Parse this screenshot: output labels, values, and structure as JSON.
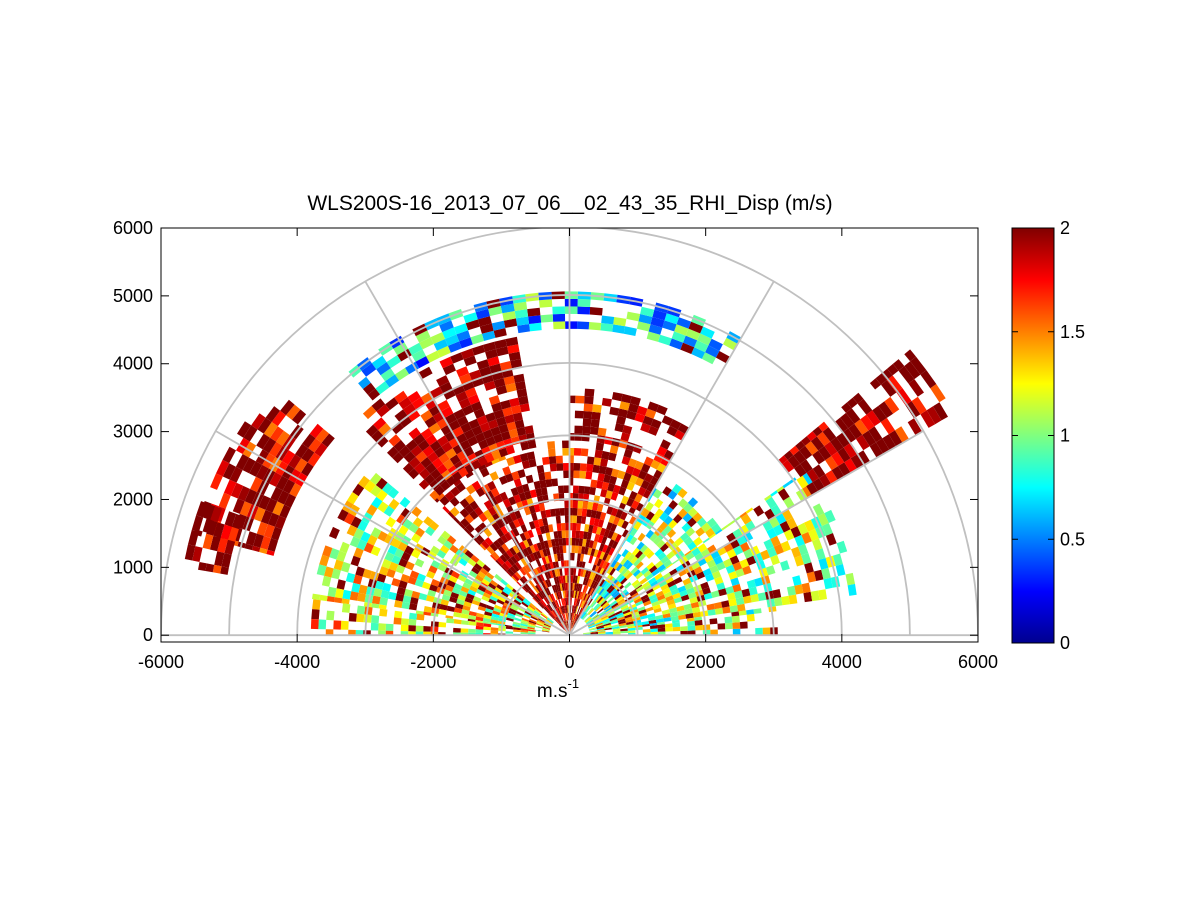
{
  "chart_data": {
    "type": "heatmap",
    "subtype": "polar RHI scan (range-height indicator)",
    "title": "WLS200S-16_2013_07_06__02_43_35_RHI_Disp (m/s)",
    "xlabel": "m.s",
    "xlabel_superscript": "-1",
    "ylabel": "",
    "xlim": [
      -6000,
      6000
    ],
    "ylim": [
      -100,
      6000
    ],
    "xticks": [
      -6000,
      -4000,
      -2000,
      0,
      2000,
      4000,
      6000
    ],
    "xtick_labels": [
      "-6000",
      "-4000",
      "-2000",
      "0",
      "2000",
      "4000",
      "6000"
    ],
    "yticks": [
      0,
      1000,
      2000,
      3000,
      4000,
      5000,
      6000
    ],
    "ytick_labels": [
      "0",
      "1000",
      "2000",
      "3000",
      "4000",
      "5000",
      "6000"
    ],
    "polar_grid": {
      "ring_ranges": [
        1000,
        2000,
        3000,
        4000,
        5000,
        6000
      ],
      "spoke_angles_deg": [
        0,
        30,
        60,
        90,
        120,
        150,
        180
      ]
    },
    "colorbar": {
      "colormap": "jet",
      "clim": [
        0,
        2
      ],
      "ticks": [
        0,
        0.5,
        1,
        1.5,
        2
      ],
      "tick_labels": [
        "0",
        "0.5",
        "1",
        "1.5",
        "2"
      ]
    },
    "value_range_m": [
      0,
      6000
    ],
    "note": "Per-gate values estimated from colour; high values (~2) dominate upper sectors, mid values (~0.5-1.2) in low-elevation sectors and the ~4700 m band near vertical.",
    "sectors": [
      {
        "az_from": 90,
        "az_to": 135,
        "r_from": 0,
        "r_to": 2800,
        "level": 1.85,
        "note": "dense red/orange core near origin"
      },
      {
        "az_from": 60,
        "az_to": 90,
        "r_from": 0,
        "r_to": 3600,
        "level": 1.8
      },
      {
        "az_from": 35,
        "az_to": 60,
        "r_from": 300,
        "r_to": 2700,
        "level": 1.0,
        "note": "green/cyan streaks"
      },
      {
        "az_from": 8,
        "az_to": 35,
        "r_from": 300,
        "r_to": 4200,
        "level": 1.1
      },
      {
        "az_from": 0,
        "az_to": 8,
        "r_from": 200,
        "r_to": 3000,
        "level": 1.05
      },
      {
        "az_from": 140,
        "az_to": 172,
        "r_from": 300,
        "r_to": 3800,
        "level": 1.2
      },
      {
        "az_from": 172,
        "az_to": 180,
        "r_from": 500,
        "r_to": 3700,
        "level": 1.3
      },
      {
        "az_from": 60,
        "az_to": 130,
        "r_from": 4500,
        "r_to": 5000,
        "level": 0.7,
        "note": "cyan/blue band"
      },
      {
        "az_from": 100,
        "az_to": 135,
        "r_from": 2800,
        "r_to": 4400,
        "level": 1.95
      },
      {
        "az_from": 140,
        "az_to": 165,
        "r_from": 4500,
        "r_to": 5700,
        "level": 1.9
      },
      {
        "az_from": 30,
        "az_to": 40,
        "r_from": 4000,
        "r_to": 6500,
        "level": 2.0
      },
      {
        "az_from": 160,
        "az_to": 170,
        "r_from": 5100,
        "r_to": 5800,
        "level": 2.0
      }
    ]
  }
}
